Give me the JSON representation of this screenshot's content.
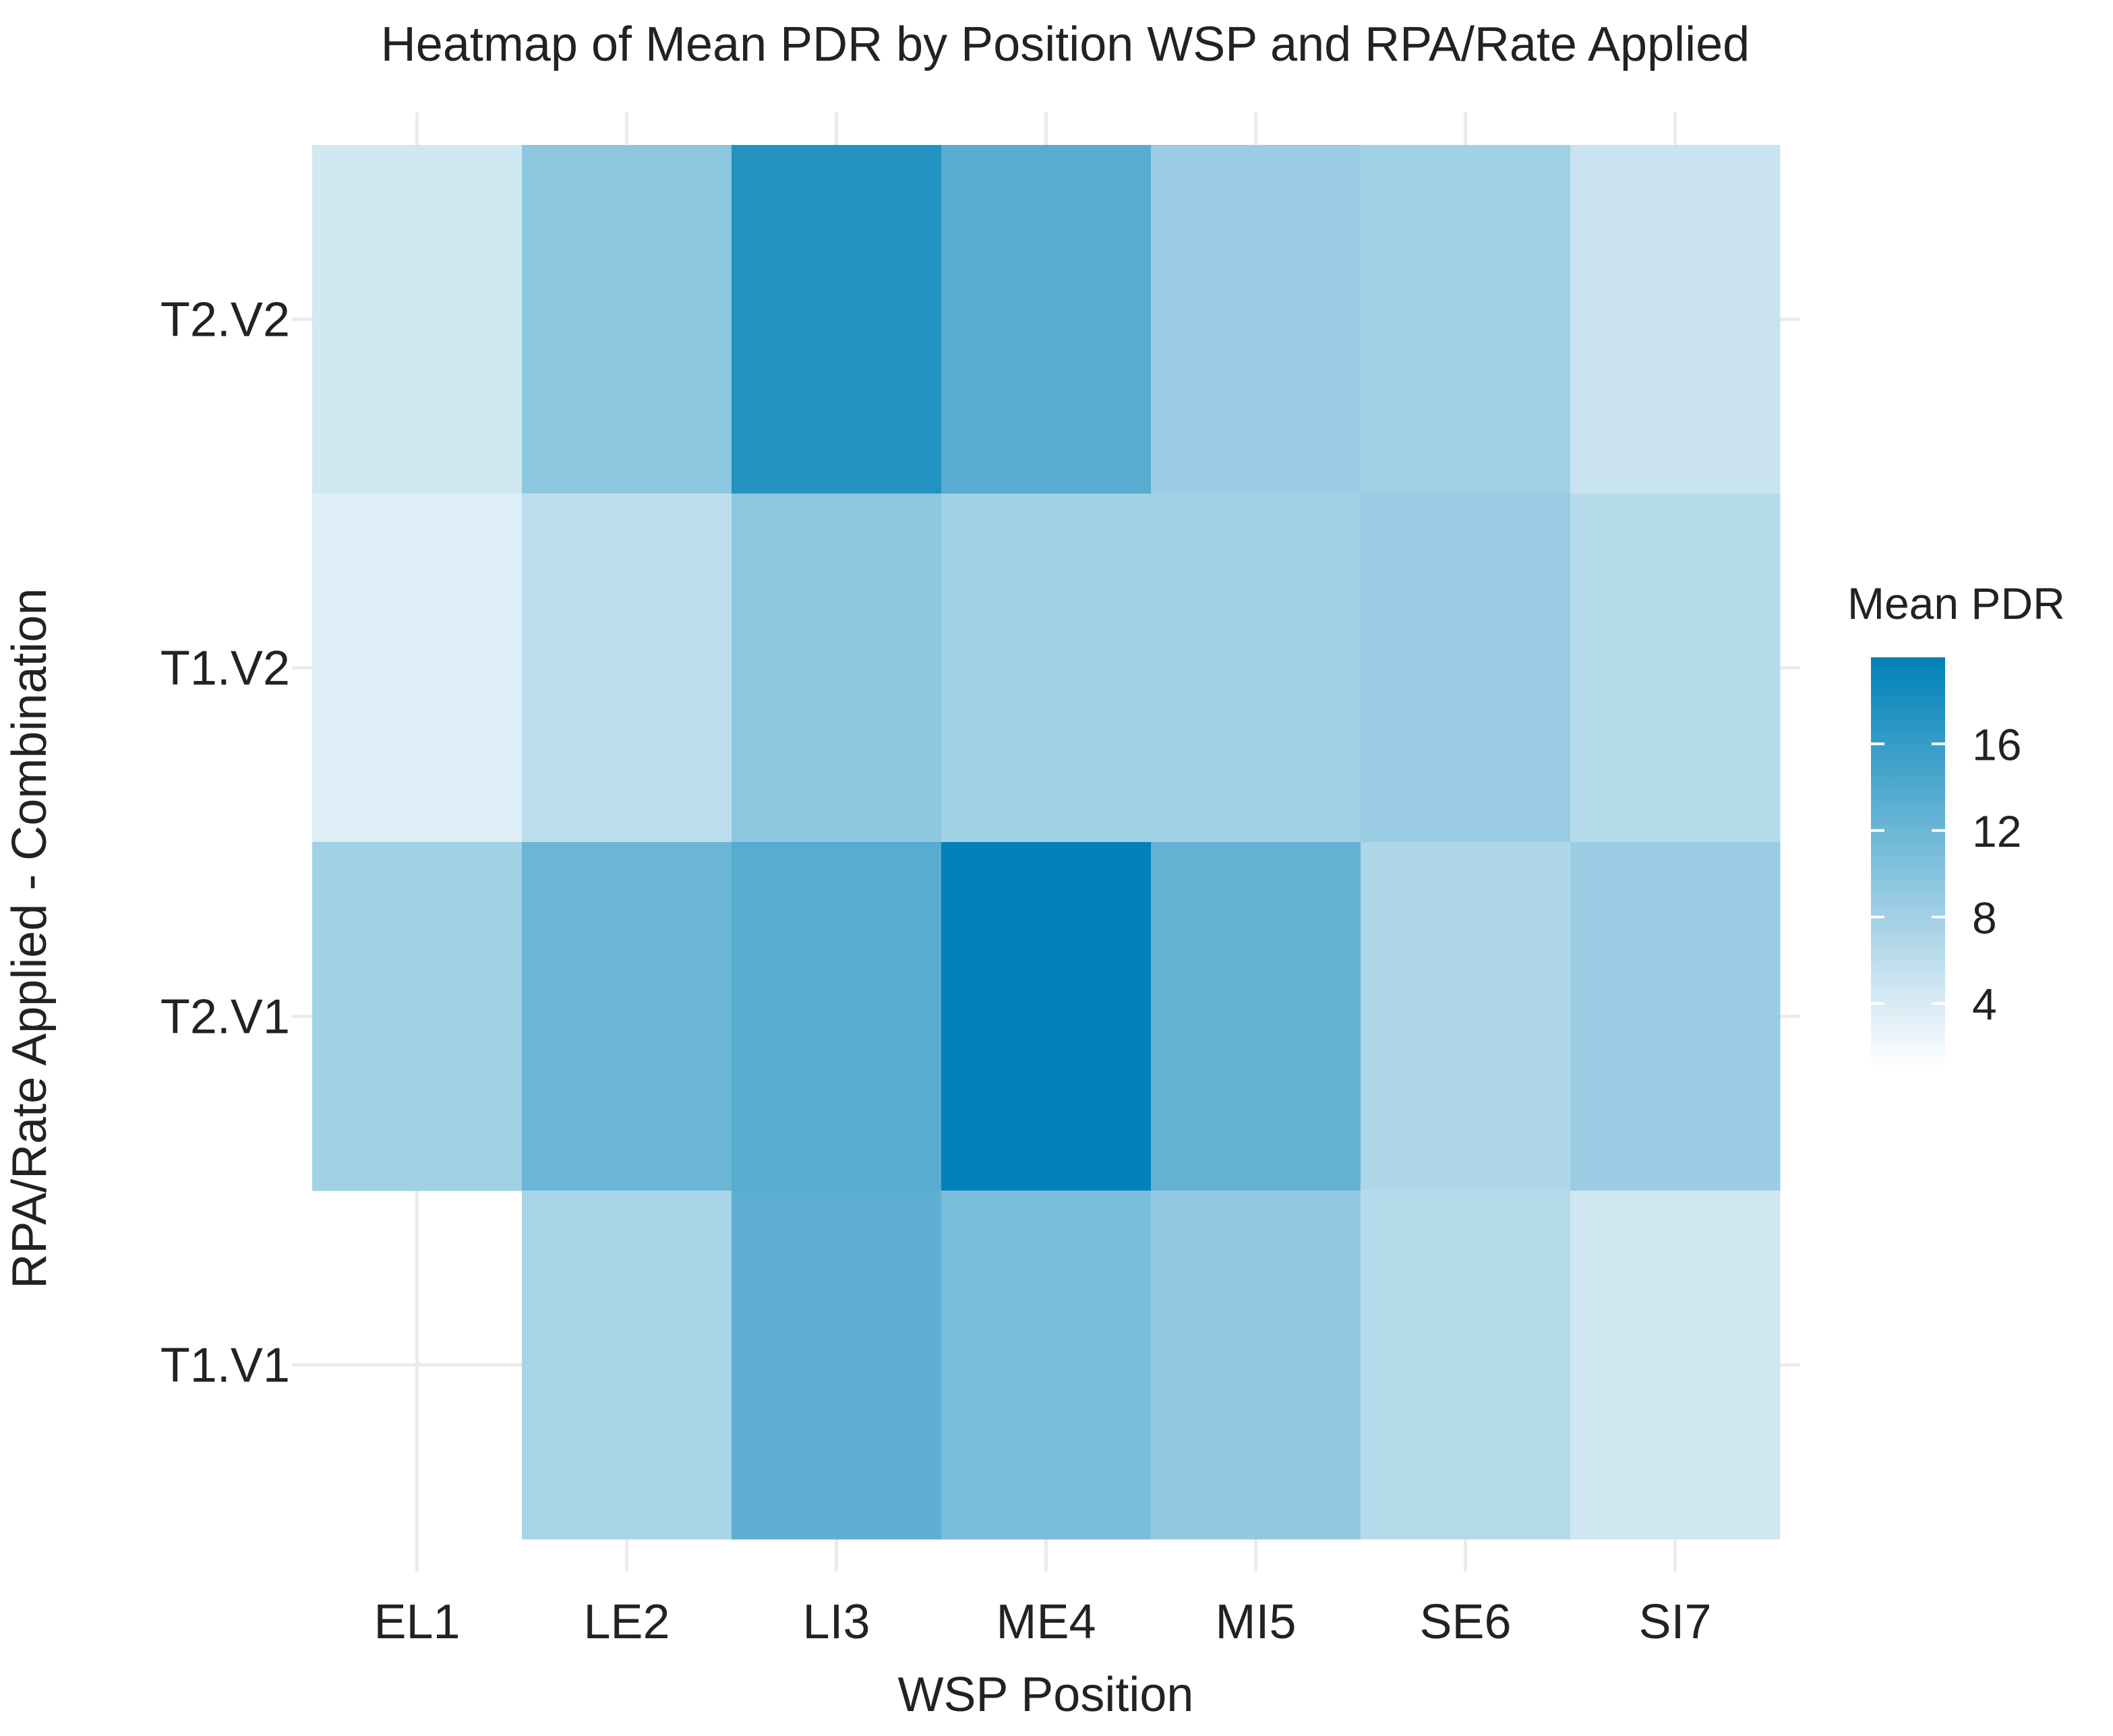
{
  "chart_data": {
    "type": "heatmap",
    "title": "Heatmap of Mean PDR by Position WSP and RPA/Rate Applied",
    "xlabel": "WSP Position",
    "ylabel": "RPA/Rate Applied - Combination",
    "x_categories": [
      "EL1",
      "LE2",
      "LI3",
      "ME4",
      "MI5",
      "SE6",
      "SI7"
    ],
    "y_categories": [
      "T2.V2",
      "T1.V2",
      "T2.V1",
      "T1.V1"
    ],
    "values": [
      [
        4.5,
        9.5,
        17.5,
        13.5,
        8.5,
        8,
        5
      ],
      [
        3.5,
        6,
        9.5,
        8,
        8,
        8.5,
        6.5
      ],
      [
        8,
        12,
        13.5,
        20,
        12.5,
        7,
        8.5
      ],
      [
        null,
        7.5,
        13,
        11,
        9,
        6.5,
        4.5
      ]
    ],
    "grid": true,
    "legend": {
      "title": "Mean PDR",
      "position": "right",
      "ticks": [
        4,
        8,
        12,
        16
      ],
      "range": [
        1,
        20
      ],
      "color_low": "#ffffff",
      "color_high": "#0081b8"
    }
  }
}
